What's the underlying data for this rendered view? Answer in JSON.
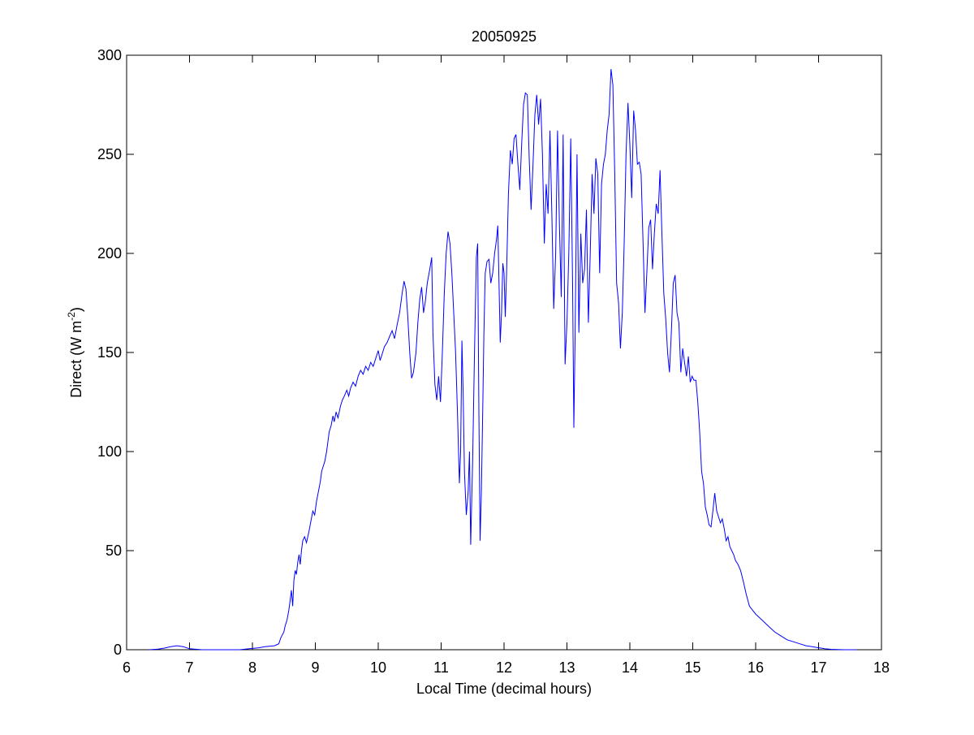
{
  "chart_data": {
    "type": "line",
    "title": "20050925",
    "xlabel": "Local Time (decimal hours)",
    "ylabel": {
      "main": "Direct (W m",
      "sup": "-2",
      "close": ")"
    },
    "xlim": [
      6,
      18
    ],
    "ylim": [
      0,
      300
    ],
    "xticks": [
      6,
      7,
      8,
      9,
      10,
      11,
      12,
      13,
      14,
      15,
      16,
      17,
      18
    ],
    "yticks": [
      0,
      50,
      100,
      150,
      200,
      250,
      300
    ],
    "grid": false,
    "line_color": "#0000ff",
    "series": [
      {
        "points": [
          [
            6.36,
            0
          ],
          [
            6.5,
            0.3
          ],
          [
            6.6,
            0.8
          ],
          [
            6.7,
            1.5
          ],
          [
            6.8,
            2.0
          ],
          [
            6.9,
            1.5
          ],
          [
            7.0,
            0.5
          ],
          [
            7.2,
            0
          ],
          [
            7.5,
            0
          ],
          [
            7.8,
            0
          ],
          [
            7.95,
            0.5
          ],
          [
            8.1,
            1.0
          ],
          [
            8.2,
            1.5
          ],
          [
            8.35,
            2.0
          ],
          [
            8.42,
            3
          ],
          [
            8.45,
            6
          ],
          [
            8.5,
            9
          ],
          [
            8.52,
            12
          ],
          [
            8.55,
            15
          ],
          [
            8.58,
            20
          ],
          [
            8.6,
            25
          ],
          [
            8.62,
            30
          ],
          [
            8.64,
            22
          ],
          [
            8.66,
            35
          ],
          [
            8.68,
            40
          ],
          [
            8.7,
            38
          ],
          [
            8.72,
            44
          ],
          [
            8.74,
            48
          ],
          [
            8.76,
            43
          ],
          [
            8.78,
            50
          ],
          [
            8.8,
            55
          ],
          [
            8.83,
            57
          ],
          [
            8.86,
            54
          ],
          [
            8.9,
            60
          ],
          [
            8.93,
            65
          ],
          [
            8.96,
            70
          ],
          [
            8.99,
            68
          ],
          [
            9.02,
            75
          ],
          [
            9.05,
            80
          ],
          [
            9.08,
            85
          ],
          [
            9.1,
            90
          ],
          [
            9.12,
            92
          ],
          [
            9.15,
            95
          ],
          [
            9.18,
            100
          ],
          [
            9.2,
            105
          ],
          [
            9.22,
            110
          ],
          [
            9.25,
            113
          ],
          [
            9.28,
            118
          ],
          [
            9.3,
            115
          ],
          [
            9.33,
            120
          ],
          [
            9.36,
            117
          ],
          [
            9.4,
            123
          ],
          [
            9.43,
            126
          ],
          [
            9.46,
            128
          ],
          [
            9.5,
            131
          ],
          [
            9.53,
            128
          ],
          [
            9.56,
            132
          ],
          [
            9.6,
            135
          ],
          [
            9.64,
            133
          ],
          [
            9.68,
            138
          ],
          [
            9.72,
            141
          ],
          [
            9.76,
            139
          ],
          [
            9.8,
            143
          ],
          [
            9.84,
            141
          ],
          [
            9.88,
            145
          ],
          [
            9.92,
            143
          ],
          [
            9.96,
            147
          ],
          [
            10.0,
            151
          ],
          [
            10.03,
            146
          ],
          [
            10.06,
            149
          ],
          [
            10.1,
            153
          ],
          [
            10.14,
            155
          ],
          [
            10.18,
            158
          ],
          [
            10.22,
            161
          ],
          [
            10.26,
            157
          ],
          [
            10.3,
            164
          ],
          [
            10.34,
            170
          ],
          [
            10.38,
            180
          ],
          [
            10.41,
            186
          ],
          [
            10.44,
            182
          ],
          [
            10.47,
            168
          ],
          [
            10.5,
            150
          ],
          [
            10.53,
            137
          ],
          [
            10.56,
            140
          ],
          [
            10.6,
            150
          ],
          [
            10.63,
            165
          ],
          [
            10.66,
            177
          ],
          [
            10.69,
            183
          ],
          [
            10.72,
            170
          ],
          [
            10.75,
            176
          ],
          [
            10.78,
            185
          ],
          [
            10.82,
            192
          ],
          [
            10.85,
            198
          ],
          [
            10.87,
            160
          ],
          [
            10.9,
            134
          ],
          [
            10.93,
            126
          ],
          [
            10.96,
            138
          ],
          [
            10.99,
            125
          ],
          [
            11.02,
            150
          ],
          [
            11.05,
            180
          ],
          [
            11.08,
            200
          ],
          [
            11.11,
            211
          ],
          [
            11.14,
            205
          ],
          [
            11.17,
            190
          ],
          [
            11.2,
            170
          ],
          [
            11.23,
            150
          ],
          [
            11.26,
            120
          ],
          [
            11.29,
            84
          ],
          [
            11.31,
            100
          ],
          [
            11.33,
            156
          ],
          [
            11.35,
            130
          ],
          [
            11.37,
            90
          ],
          [
            11.4,
            68
          ],
          [
            11.43,
            80
          ],
          [
            11.45,
            100
          ],
          [
            11.47,
            53
          ],
          [
            11.5,
            95
          ],
          [
            11.53,
            150
          ],
          [
            11.56,
            198
          ],
          [
            11.58,
            205
          ],
          [
            11.6,
            120
          ],
          [
            11.62,
            55
          ],
          [
            11.64,
            80
          ],
          [
            11.66,
            120
          ],
          [
            11.68,
            160
          ],
          [
            11.7,
            190
          ],
          [
            11.73,
            196
          ],
          [
            11.76,
            197
          ],
          [
            11.79,
            185
          ],
          [
            11.82,
            190
          ],
          [
            11.85,
            200
          ],
          [
            11.88,
            207
          ],
          [
            11.9,
            214
          ],
          [
            11.92,
            185
          ],
          [
            11.94,
            155
          ],
          [
            11.96,
            170
          ],
          [
            11.98,
            195
          ],
          [
            12.0,
            190
          ],
          [
            12.02,
            168
          ],
          [
            12.04,
            190
          ],
          [
            12.07,
            230
          ],
          [
            12.1,
            252
          ],
          [
            12.13,
            245
          ],
          [
            12.16,
            258
          ],
          [
            12.19,
            260
          ],
          [
            12.22,
            245
          ],
          [
            12.25,
            232
          ],
          [
            12.28,
            255
          ],
          [
            12.31,
            275
          ],
          [
            12.34,
            281
          ],
          [
            12.37,
            280
          ],
          [
            12.4,
            248
          ],
          [
            12.43,
            222
          ],
          [
            12.46,
            245
          ],
          [
            12.49,
            270
          ],
          [
            12.52,
            280
          ],
          [
            12.55,
            265
          ],
          [
            12.58,
            278
          ],
          [
            12.61,
            250
          ],
          [
            12.64,
            205
          ],
          [
            12.67,
            235
          ],
          [
            12.7,
            220
          ],
          [
            12.73,
            262
          ],
          [
            12.76,
            220
          ],
          [
            12.79,
            172
          ],
          [
            12.82,
            200
          ],
          [
            12.85,
            262
          ],
          [
            12.88,
            215
          ],
          [
            12.91,
            178
          ],
          [
            12.94,
            260
          ],
          [
            12.97,
            144
          ],
          [
            13.0,
            165
          ],
          [
            13.03,
            200
          ],
          [
            13.06,
            258
          ],
          [
            13.09,
            183
          ],
          [
            13.11,
            112
          ],
          [
            13.13,
            160
          ],
          [
            13.16,
            250
          ],
          [
            13.19,
            160
          ],
          [
            13.22,
            210
          ],
          [
            13.25,
            185
          ],
          [
            13.28,
            192
          ],
          [
            13.31,
            222
          ],
          [
            13.34,
            165
          ],
          [
            13.37,
            200
          ],
          [
            13.4,
            240
          ],
          [
            13.43,
            220
          ],
          [
            13.46,
            248
          ],
          [
            13.49,
            240
          ],
          [
            13.52,
            190
          ],
          [
            13.55,
            235
          ],
          [
            13.58,
            245
          ],
          [
            13.61,
            250
          ],
          [
            13.64,
            262
          ],
          [
            13.67,
            270
          ],
          [
            13.7,
            293
          ],
          [
            13.73,
            285
          ],
          [
            13.76,
            240
          ],
          [
            13.79,
            185
          ],
          [
            13.82,
            175
          ],
          [
            13.85,
            152
          ],
          [
            13.88,
            170
          ],
          [
            13.91,
            205
          ],
          [
            13.94,
            250
          ],
          [
            13.97,
            276
          ],
          [
            14.0,
            255
          ],
          [
            14.03,
            228
          ],
          [
            14.06,
            272
          ],
          [
            14.09,
            262
          ],
          [
            14.12,
            245
          ],
          [
            14.15,
            246
          ],
          [
            14.18,
            240
          ],
          [
            14.21,
            205
          ],
          [
            14.24,
            170
          ],
          [
            14.27,
            190
          ],
          [
            14.3,
            213
          ],
          [
            14.33,
            217
          ],
          [
            14.36,
            192
          ],
          [
            14.39,
            210
          ],
          [
            14.42,
            225
          ],
          [
            14.45,
            220
          ],
          [
            14.48,
            242
          ],
          [
            14.51,
            210
          ],
          [
            14.54,
            180
          ],
          [
            14.57,
            167
          ],
          [
            14.6,
            150
          ],
          [
            14.63,
            140
          ],
          [
            14.66,
            160
          ],
          [
            14.69,
            185
          ],
          [
            14.72,
            189
          ],
          [
            14.75,
            170
          ],
          [
            14.78,
            165
          ],
          [
            14.81,
            140
          ],
          [
            14.84,
            152
          ],
          [
            14.87,
            145
          ],
          [
            14.9,
            138
          ],
          [
            14.93,
            148
          ],
          [
            14.96,
            135
          ],
          [
            14.99,
            138
          ],
          [
            15.02,
            136
          ],
          [
            15.05,
            136
          ],
          [
            15.08,
            125
          ],
          [
            15.11,
            110
          ],
          [
            15.14,
            90
          ],
          [
            15.17,
            84
          ],
          [
            15.2,
            72
          ],
          [
            15.23,
            68
          ],
          [
            15.26,
            63
          ],
          [
            15.29,
            62
          ],
          [
            15.32,
            70
          ],
          [
            15.35,
            79
          ],
          [
            15.38,
            70
          ],
          [
            15.41,
            67
          ],
          [
            15.44,
            64
          ],
          [
            15.47,
            66
          ],
          [
            15.5,
            61
          ],
          [
            15.53,
            55
          ],
          [
            15.56,
            57
          ],
          [
            15.59,
            52
          ],
          [
            15.62,
            50
          ],
          [
            15.65,
            48
          ],
          [
            15.68,
            45
          ],
          [
            15.72,
            43
          ],
          [
            15.76,
            40
          ],
          [
            15.8,
            35
          ],
          [
            15.85,
            28
          ],
          [
            15.9,
            22
          ],
          [
            15.95,
            20
          ],
          [
            16.0,
            18
          ],
          [
            16.1,
            15
          ],
          [
            16.2,
            12
          ],
          [
            16.3,
            9
          ],
          [
            16.4,
            7
          ],
          [
            16.5,
            5
          ],
          [
            16.6,
            4
          ],
          [
            16.7,
            3
          ],
          [
            16.8,
            2
          ],
          [
            16.9,
            1.5
          ],
          [
            17.0,
            1
          ],
          [
            17.1,
            0.5
          ],
          [
            17.2,
            0.2
          ],
          [
            17.3,
            0.1
          ],
          [
            17.4,
            0
          ],
          [
            17.6,
            0
          ]
        ]
      }
    ]
  }
}
